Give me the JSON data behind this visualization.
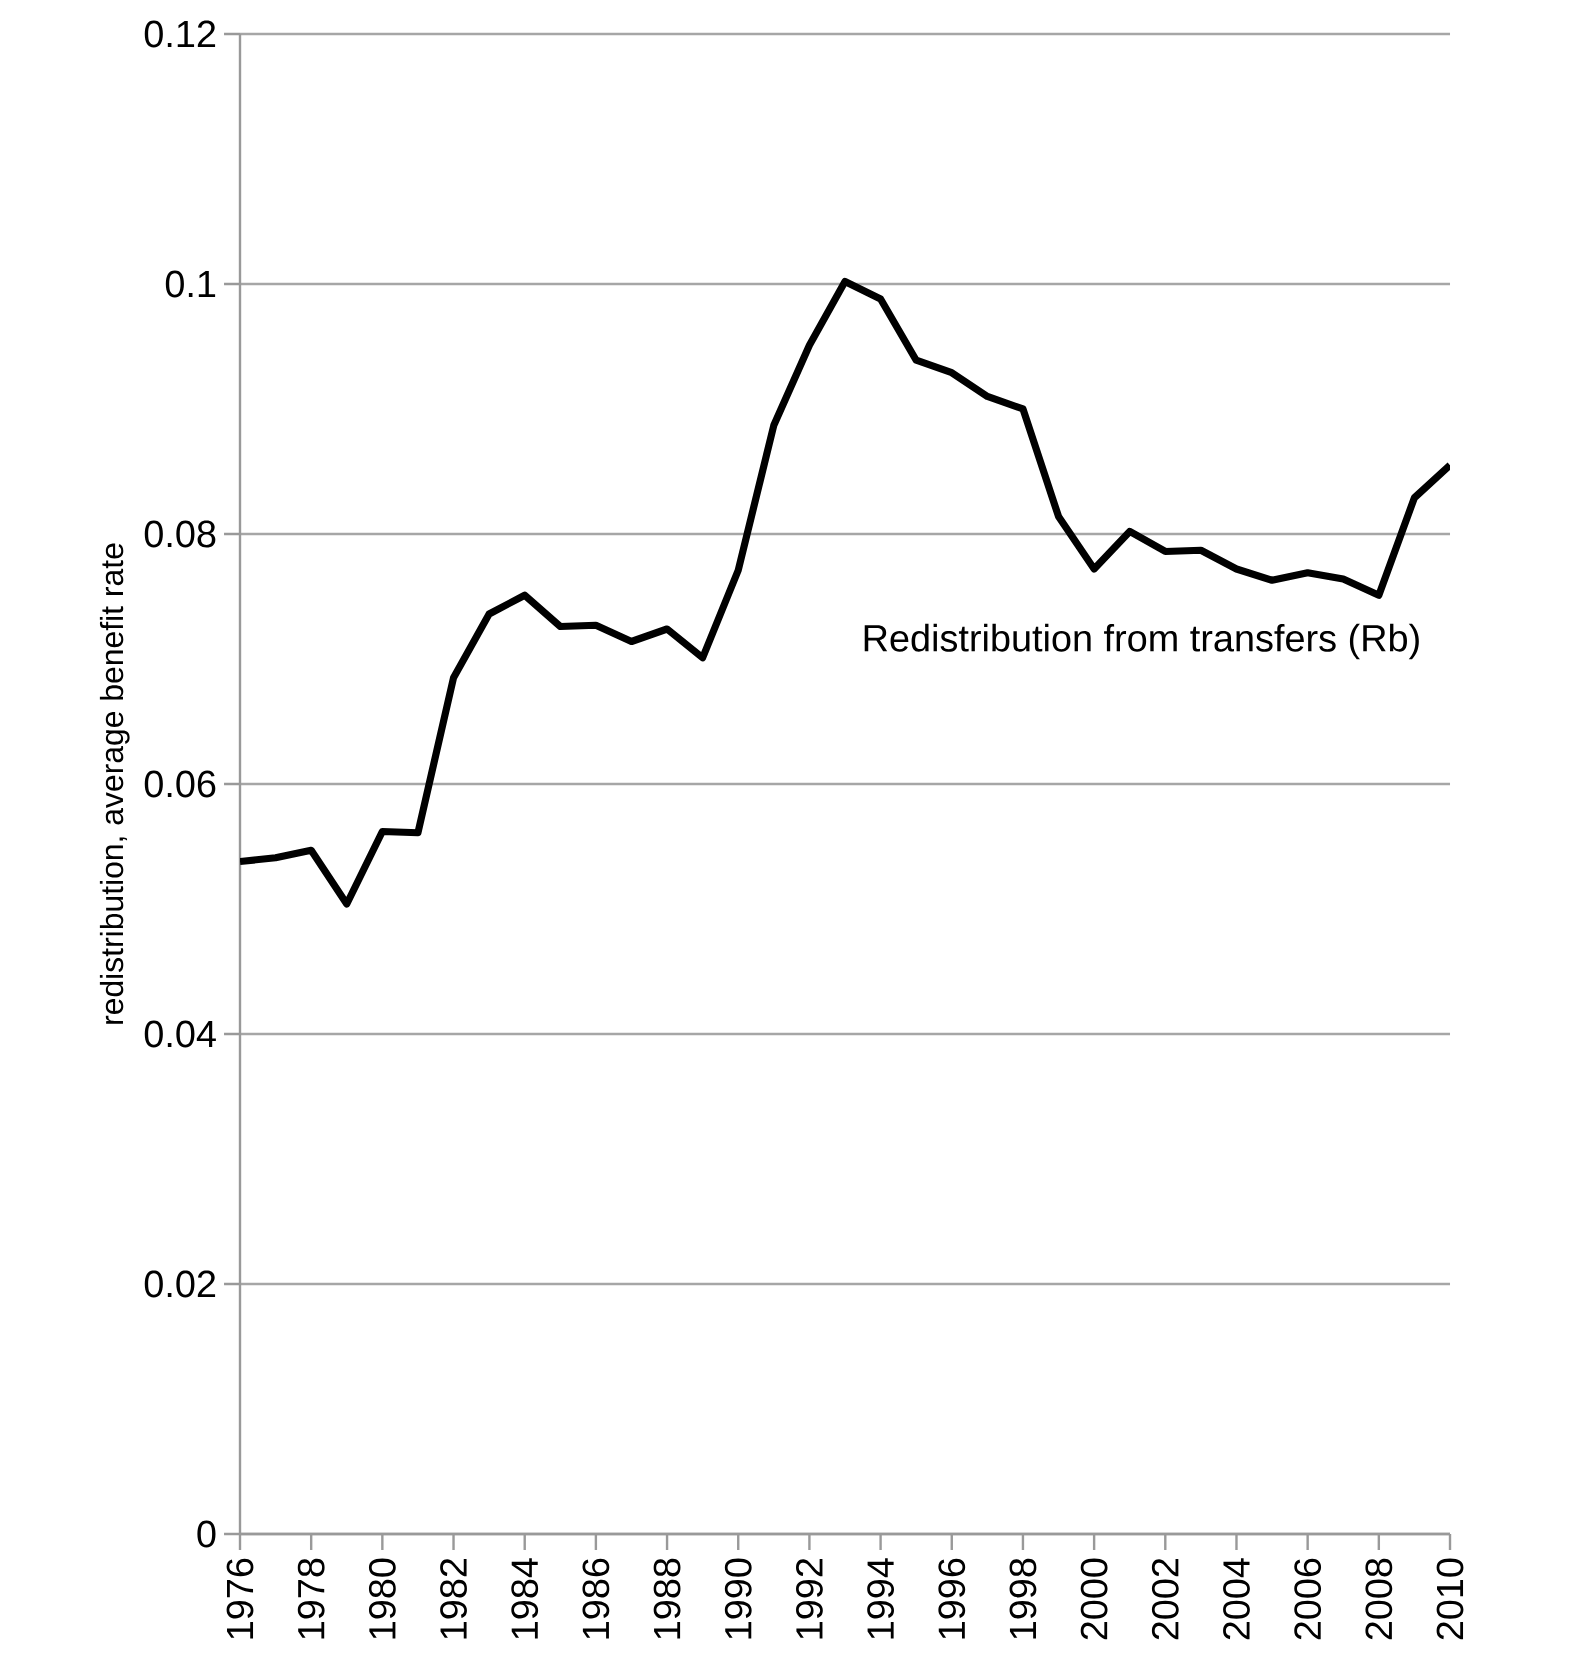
{
  "chart_data": {
    "type": "line",
    "ylabel": "redistribution, average benefit rate",
    "x": [
      1976,
      1977,
      1978,
      1979,
      1980,
      1981,
      1982,
      1983,
      1984,
      1985,
      1986,
      1987,
      1988,
      1989,
      1990,
      1991,
      1992,
      1993,
      1994,
      1995,
      1996,
      1997,
      1998,
      1999,
      2000,
      2001,
      2002,
      2003,
      2004,
      2005,
      2006,
      2007,
      2008,
      2009,
      2010
    ],
    "series": [
      {
        "color": "#000000",
        "values": [
          0.0538,
          0.0541,
          0.0547,
          0.0504,
          0.0562,
          0.0561,
          0.0685,
          0.0736,
          0.0751,
          0.0726,
          0.0727,
          0.0714,
          0.0724,
          0.0701,
          0.0771,
          0.0887,
          0.0951,
          0.1002,
          0.0988,
          0.0939,
          0.0929,
          0.091,
          0.09,
          0.0814,
          0.0772,
          0.0802,
          0.0786,
          0.0787,
          0.0772,
          0.0763,
          0.0769,
          0.0764,
          0.0751,
          0.0829,
          0.0855
        ]
      }
    ],
    "xlim": [
      1976,
      2010
    ],
    "ylim": [
      0,
      0.12
    ],
    "xticks": [
      1976,
      1978,
      1980,
      1982,
      1984,
      1986,
      1988,
      1990,
      1992,
      1994,
      1996,
      1998,
      2000,
      2002,
      2004,
      2006,
      2008,
      2010
    ],
    "yticks": [
      0,
      0.02,
      0.04,
      0.06,
      0.08,
      0.1,
      0.12
    ],
    "grid": "y",
    "marker": "none",
    "line_style": "solid",
    "annotations": [
      "Redistribution from transfers (Rb)"
    ]
  }
}
